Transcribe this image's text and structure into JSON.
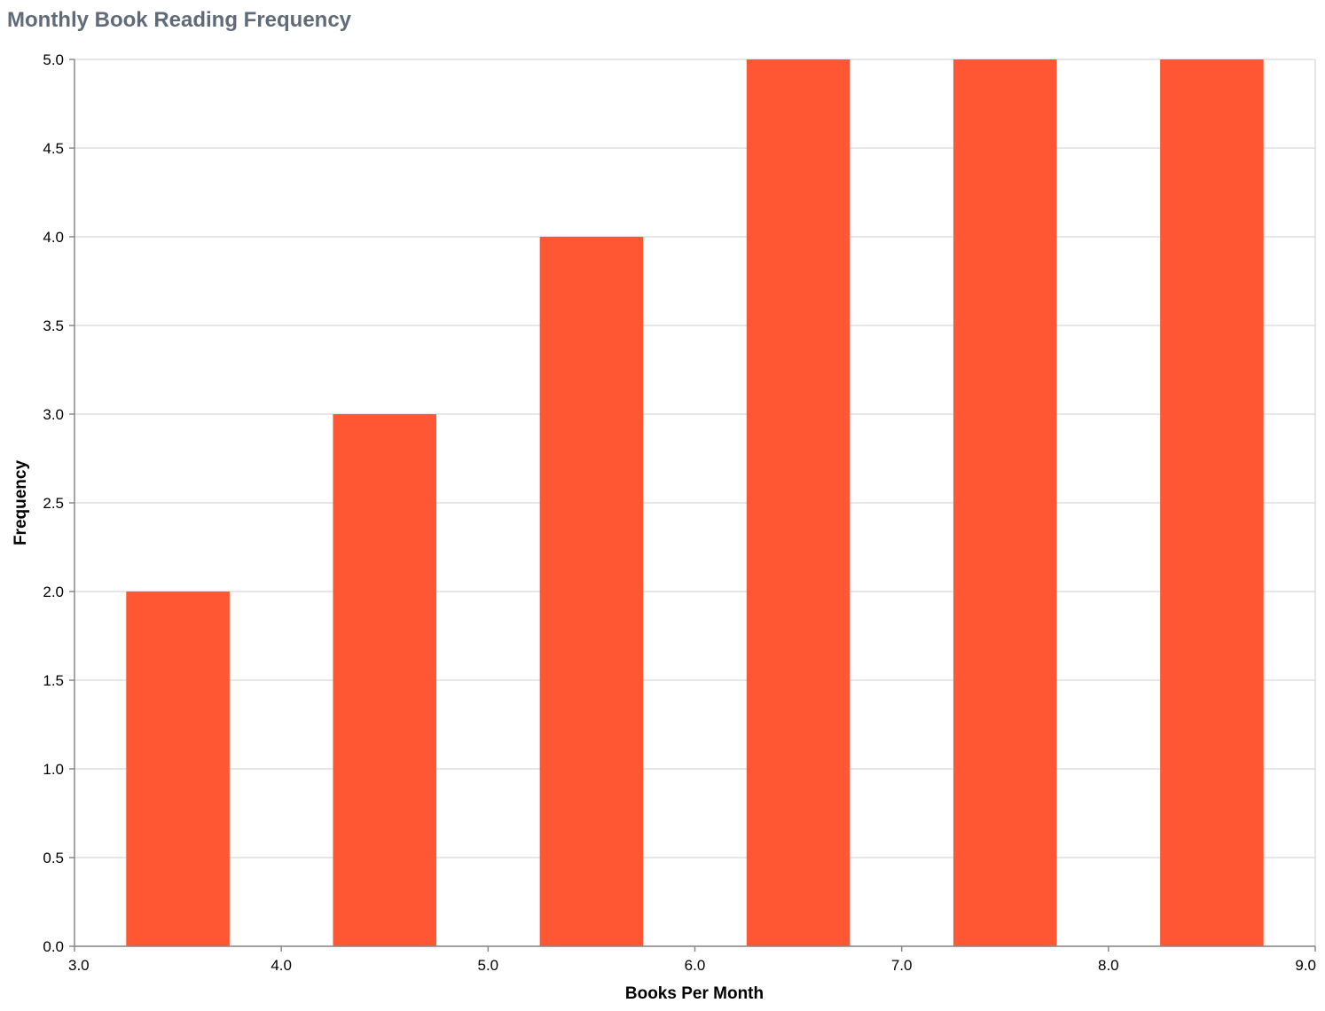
{
  "chart_data": {
    "type": "bar",
    "title": "Monthly Book Reading Frequency",
    "xlabel": "Books Per Month",
    "ylabel": "Frequency",
    "xlim": [
      3.0,
      9.0
    ],
    "ylim": [
      0.0,
      5.0
    ],
    "bin_width": 1.0,
    "bins": [
      {
        "start": 3.0,
        "end": 4.0,
        "value": 2
      },
      {
        "start": 4.0,
        "end": 5.0,
        "value": 3
      },
      {
        "start": 5.0,
        "end": 6.0,
        "value": 4
      },
      {
        "start": 6.0,
        "end": 7.0,
        "value": 5
      },
      {
        "start": 7.0,
        "end": 8.0,
        "value": 5
      },
      {
        "start": 8.0,
        "end": 9.0,
        "value": 5
      }
    ],
    "x_ticks": [
      "3.0",
      "4.0",
      "5.0",
      "6.0",
      "7.0",
      "8.0",
      "9.0"
    ],
    "y_ticks": [
      "0.0",
      "0.5",
      "1.0",
      "1.5",
      "2.0",
      "2.5",
      "3.0",
      "3.5",
      "4.0",
      "4.5",
      "5.0"
    ],
    "grid": true,
    "bar_color": "#ff5733",
    "title_color": "#5f6b7a"
  }
}
